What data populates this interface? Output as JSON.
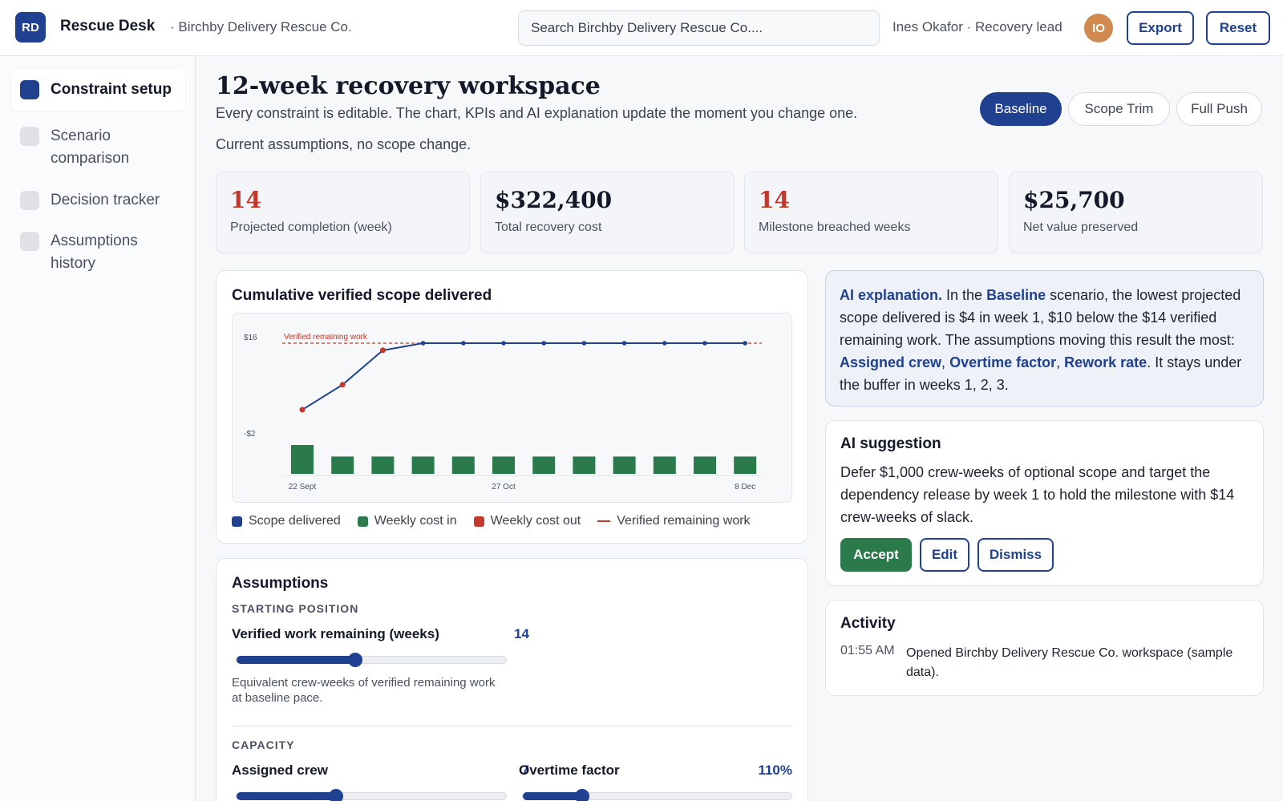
{
  "topbar": {
    "logo": "RD",
    "app_name": "Rescue Desk",
    "org": "· Birchby Delivery Rescue Co.",
    "search_placeholder": "Search Birchby Delivery Rescue Co....",
    "user": "Ines Okafor · Recovery lead",
    "avatar": "IO",
    "export_label": "Export",
    "reset_label": "Reset"
  },
  "sidebar": {
    "items": [
      {
        "label": "Constraint setup",
        "active": true
      },
      {
        "label": "Scenario comparison",
        "active": false
      },
      {
        "label": "Decision tracker",
        "active": false
      },
      {
        "label": "Assumptions history",
        "active": false
      }
    ]
  },
  "header": {
    "title": "12-week recovery workspace",
    "subtitle": "Every constraint is editable. The chart, KPIs and AI explanation update the moment you change one.",
    "status": "Current assumptions, no scope change.",
    "scenarios": [
      "Baseline",
      "Scope Trim",
      "Full Push"
    ],
    "active_scenario": "Baseline"
  },
  "kpis": [
    {
      "value": "14",
      "label": "Projected completion (week)",
      "alert": true
    },
    {
      "value": "$322,400",
      "label": "Total recovery cost",
      "alert": false
    },
    {
      "value": "14",
      "label": "Milestone breached weeks",
      "alert": true
    },
    {
      "value": "$25,700",
      "label": "Net value preserved",
      "alert": false
    }
  ],
  "chart_card": {
    "title": "Cumulative verified scope delivered",
    "legend": [
      "Scope delivered",
      "Weekly cost in",
      "Weekly cost out",
      "Verified remaining work"
    ]
  },
  "chart_data": {
    "type": "line",
    "title": "Cumulative verified scope delivered",
    "y_tick_labels": [
      "$16",
      "-$2"
    ],
    "ylim": [
      -2,
      16
    ],
    "x_tick_labels": [
      "22 Sept",
      "27 Oct",
      "8 Dec"
    ],
    "weeks": [
      1,
      2,
      3,
      4,
      5,
      6,
      7,
      8,
      9,
      10,
      11,
      12
    ],
    "reference_line": {
      "name": "Verified remaining work",
      "value": 14
    },
    "series": [
      {
        "name": "Scope delivered",
        "type": "line",
        "color": "#20418f",
        "values": [
          4,
          8,
          13.5,
          14,
          14,
          14,
          14,
          14,
          14,
          14,
          14,
          14
        ],
        "below_reference_points": [
          1,
          2,
          3
        ]
      },
      {
        "name": "Weekly cost in",
        "type": "bar",
        "color": "#2a7a4b",
        "values": [
          3,
          1.8,
          1.8,
          1.8,
          1.8,
          1.8,
          1.8,
          1.8,
          1.8,
          1.8,
          1.8,
          1.8
        ]
      }
    ],
    "legend_colors": {
      "Scope delivered": "#20418f",
      "Weekly cost in": "#2a7a4b",
      "Weekly cost out": "#c0392b",
      "Verified remaining work": "#c0392b"
    },
    "grid": false,
    "legend_position": "bottom"
  },
  "assumptions": {
    "title": "Assumptions",
    "starting_label": "STARTING POSITION",
    "verified_label": "Verified work remaining (weeks)",
    "verified_value": "14",
    "verified_level": 0.44,
    "verified_help": "Equivalent crew-weeks of verified remaining work at baseline pace.",
    "capacity_label": "CAPACITY",
    "crew_label": "Assigned crew",
    "crew_value": "7",
    "crew_level": 0.37,
    "overtime_label": "Overtime factor",
    "overtime_value": "110%",
    "overtime_level": 0.22
  },
  "ai_explanation": {
    "lead": "AI explanation.",
    "t1": " In the ",
    "scenario": "Baseline",
    "t2": " scenario, the lowest projected scope delivered is $4 in week 1, $10 below the $14 verified remaining work. The assumptions moving this result the most: ",
    "f1": "Assigned crew",
    "sep1": ", ",
    "f2": "Overtime factor",
    "sep2": ", ",
    "f3": "Rework rate",
    "t3": ". It stays under the buffer in weeks 1, 2, 3."
  },
  "ai_suggestion": {
    "title": "AI suggestion",
    "text": "Defer $1,000 crew-weeks of optional scope and target the dependency release by week 1 to hold the milestone with $14 crew-weeks of slack.",
    "accept": "Accept",
    "edit": "Edit",
    "dismiss": "Dismiss"
  },
  "activity": {
    "title": "Activity",
    "entries": [
      {
        "time": "01:55 AM",
        "text": "Opened Birchby Delivery Rescue Co. workspace (sample data)."
      }
    ]
  },
  "colors": {
    "accent": "#20418f",
    "green": "#2a7a4b",
    "red": "#c0392b",
    "avatar": "#d0894f"
  }
}
